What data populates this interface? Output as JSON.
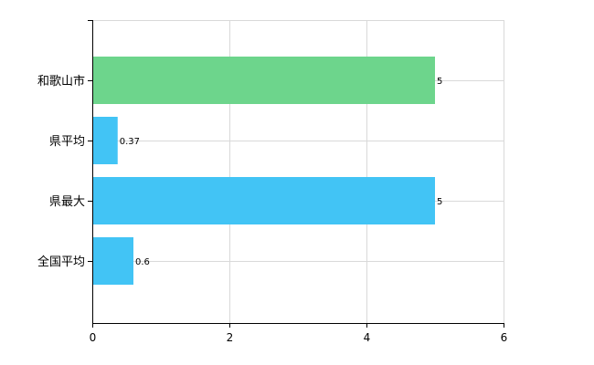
{
  "chart_data": {
    "type": "bar",
    "orientation": "horizontal",
    "categories": [
      "和歌山市",
      "県平均",
      "県最大",
      "全国平均"
    ],
    "values": [
      5,
      0.37,
      5,
      0.6
    ],
    "value_labels": [
      "5",
      "0.37",
      "5",
      "0.6"
    ],
    "colors": [
      "#6dd58c",
      "#42c4f5",
      "#42c4f5",
      "#42c4f5"
    ],
    "xlim": [
      0,
      6
    ],
    "xticks": [
      0,
      2,
      4,
      6
    ],
    "grid": true,
    "title": "",
    "xlabel": "",
    "ylabel": ""
  }
}
